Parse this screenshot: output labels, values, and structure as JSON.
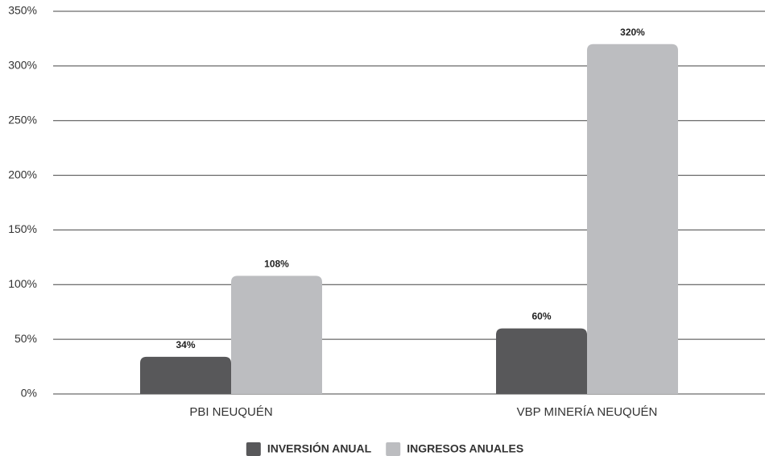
{
  "chart_data": {
    "type": "bar",
    "categories": [
      "PBI NEUQUÉN",
      "VBP MINERÍA NEUQUÉN"
    ],
    "series": [
      {
        "name": "INVERSIÓN ANUAL",
        "color": "#58585a",
        "values": [
          34,
          60
        ],
        "value_labels": [
          "34%",
          "60%"
        ]
      },
      {
        "name": "INGRESOS ANUALES",
        "color": "#bcbdc0",
        "values": [
          108,
          320
        ],
        "value_labels": [
          "108%",
          "320%"
        ]
      }
    ],
    "ylim": [
      0,
      350
    ],
    "yticks": [
      {
        "value": 0,
        "label": "0%"
      },
      {
        "value": 50,
        "label": "50%"
      },
      {
        "value": 100,
        "label": "100%"
      },
      {
        "value": 150,
        "label": "150%"
      },
      {
        "value": 200,
        "label": "200%"
      },
      {
        "value": 250,
        "label": "250%"
      },
      {
        "value": 300,
        "label": "300%"
      },
      {
        "value": 350,
        "label": "350%"
      }
    ],
    "grid": true,
    "legend": "bottom"
  }
}
